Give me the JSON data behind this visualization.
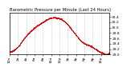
{
  "title": "Barometric Pressure per Minute (Last 24 Hours)",
  "background_color": "#ffffff",
  "plot_bg_color": "#ffffff",
  "line_color": "#dd0000",
  "grid_color": "#bbbbbb",
  "text_color": "#000000",
  "ylim": [
    29.0,
    30.55
  ],
  "yticks": [
    29.0,
    29.2,
    29.4,
    29.6,
    29.8,
    30.0,
    30.2,
    30.4
  ],
  "num_points": 1440,
  "pressure_profile": [
    29.1,
    29.12,
    29.16,
    29.22,
    29.3,
    29.4,
    29.52,
    29.62,
    29.72,
    29.8,
    29.88,
    29.95,
    30.02,
    30.08,
    30.13,
    30.18,
    30.22,
    30.28,
    30.32,
    30.35,
    30.37,
    30.38,
    30.37,
    30.35,
    30.33,
    30.28,
    30.22,
    30.15,
    30.05,
    29.95,
    29.85,
    29.75,
    29.65,
    29.55,
    29.48,
    29.42,
    29.38,
    29.35,
    29.32,
    29.28,
    29.22,
    29.18,
    29.12,
    29.08,
    29.05,
    29.02,
    29.0,
    29.05
  ],
  "noise_std": 0.012,
  "x_tick_interval": 120,
  "x_labels": [
    "12a",
    "2a",
    "4a",
    "6a",
    "8a",
    "10a",
    "12p",
    "2p",
    "4p",
    "6p",
    "8p",
    "10p",
    "12a"
  ],
  "title_fontsize": 3.8,
  "tick_fontsize": 3.2,
  "line_width": 0.6,
  "marker_size": 0.9
}
